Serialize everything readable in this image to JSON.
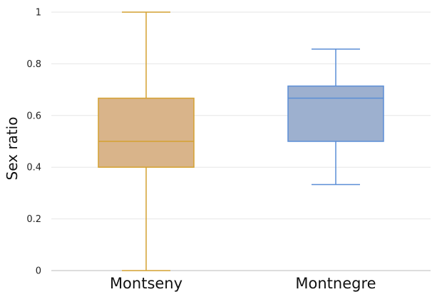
{
  "chart_data": {
    "type": "box",
    "title": "",
    "xlabel": "",
    "ylabel": "Sex ratio",
    "ylim": [
      0,
      1
    ],
    "yticks": [
      0,
      0.2,
      0.4,
      0.6,
      0.8,
      1
    ],
    "ytick_labels": [
      "0",
      "0.2",
      "0.4",
      "0.6",
      "0.8",
      "1"
    ],
    "grid": true,
    "categories": [
      "Montseny",
      "Montnegre"
    ],
    "boxes": [
      {
        "category": "Montseny",
        "min": 0,
        "q1": 0.4,
        "median": 0.5,
        "q3": 0.667,
        "max": 1,
        "fill": "#d9b48a",
        "stroke": "#d4a131"
      },
      {
        "category": "Montnegre",
        "min": 0.333,
        "q1": 0.5,
        "median": 0.667,
        "q3": 0.714,
        "max": 0.857,
        "fill": "#9db0cf",
        "stroke": "#5b8ed6"
      }
    ]
  }
}
